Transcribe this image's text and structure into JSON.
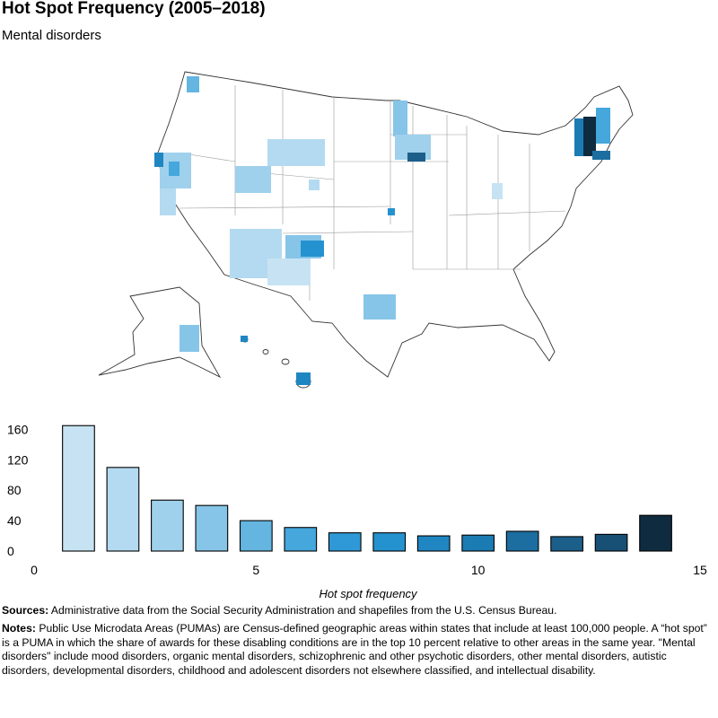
{
  "title": "Hot Spot Frequency (2005–2018)",
  "subtitle": "Mental disorders",
  "colors": [
    "#c7e3f3",
    "#b3daf0",
    "#9fd0ec",
    "#86c5e8",
    "#64b5e0",
    "#45a7dc",
    "#2e99d6",
    "#2592d0",
    "#1f86c2",
    "#1b7bb3",
    "#1c6da0",
    "#1b5f8a",
    "#184f74",
    "#0f2b3f"
  ],
  "chart_data": {
    "type": "bar",
    "x": [
      1,
      2,
      3,
      4,
      5,
      6,
      7,
      8,
      9,
      10,
      11,
      12,
      13,
      14
    ],
    "values": [
      165,
      110,
      67,
      60,
      40,
      31,
      24,
      24,
      20,
      21,
      26,
      19,
      22,
      47
    ],
    "xlim": [
      0,
      15
    ],
    "ylim": [
      0,
      170
    ],
    "xticks": [
      0,
      5,
      10,
      15
    ],
    "yticks": [
      0,
      40,
      80,
      120,
      160
    ],
    "xlabel": "Hot spot frequency",
    "ylabel": "",
    "grid": false,
    "legend": "none"
  },
  "notes": {
    "sources_label": "Sources:",
    "sources_text": "Administrative data from the Social Security Administration and shapefiles from the U.S. Census Bureau.",
    "notes_label": "Notes:",
    "notes_text": "Public Use Microdata Areas (PUMAs) are Census-defined geographic areas within states that include at least 100,000 people. A “hot spot” is a PUMA in which the share of awards for these disabling conditions are in the top 10 percent relative to other areas in the same year. \"Mental disorders\" include mood disorders, organic mental disorders, schizophrenic and other psychotic disorders, other mental disorders, autistic disorders, developmental disorders, childhood and adolescent disorders not elsewhere classified, and intellectual disability."
  }
}
